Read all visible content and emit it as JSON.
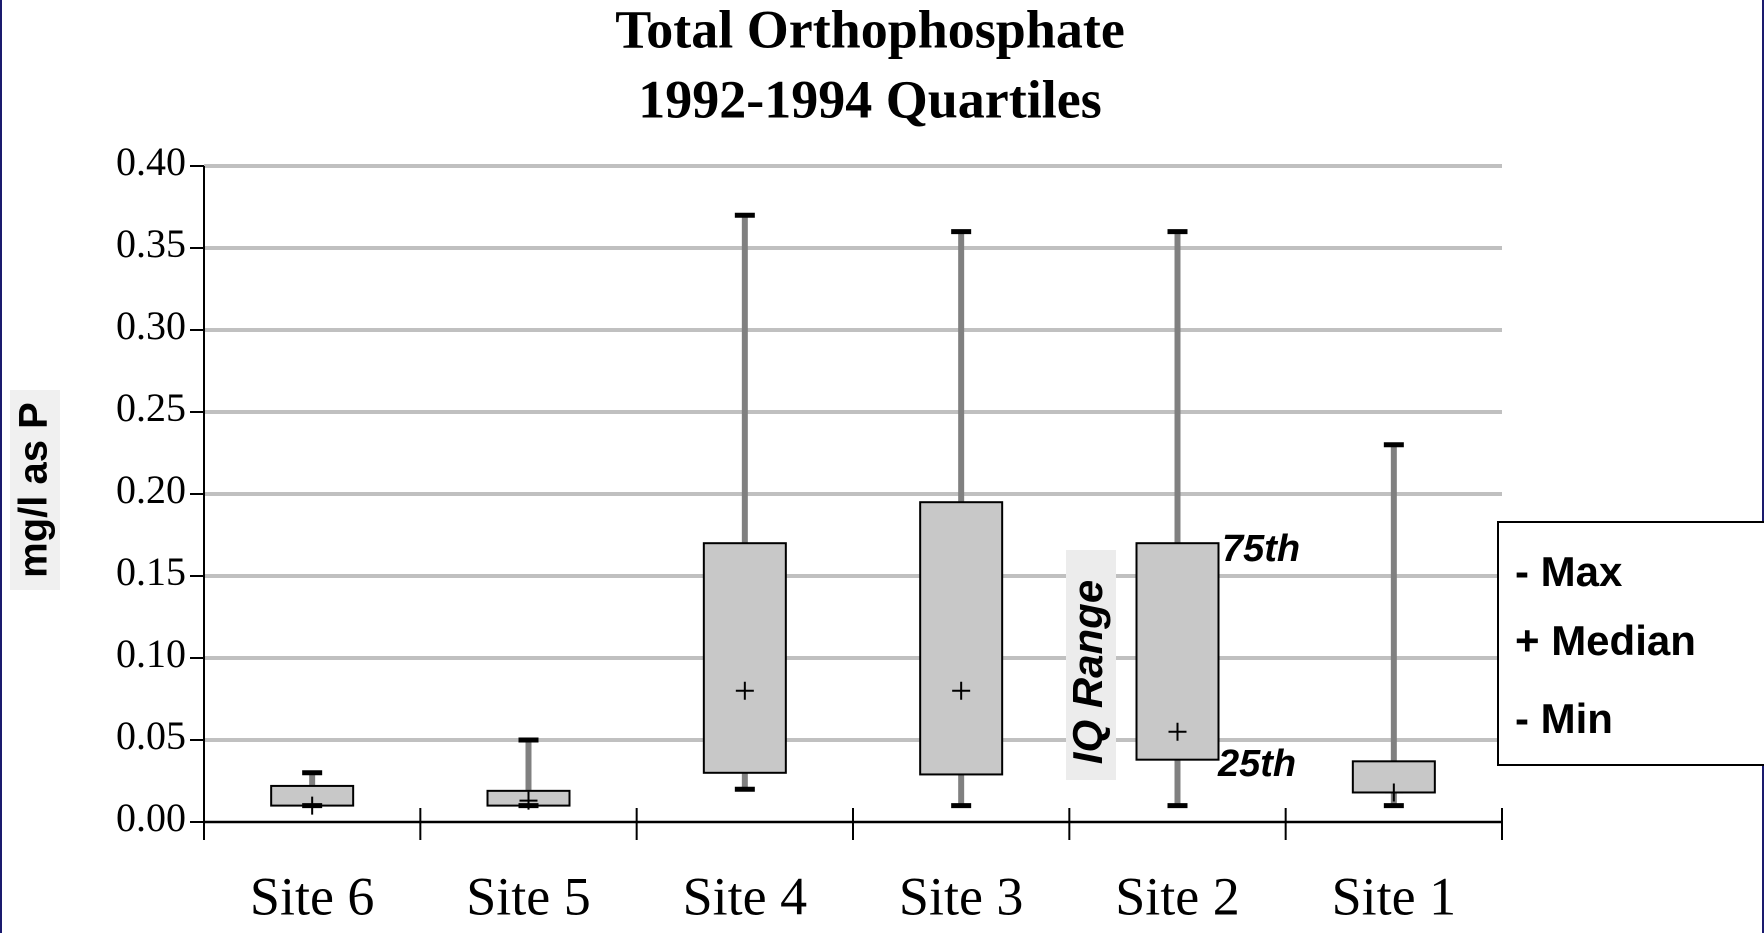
{
  "chart_data": {
    "type": "box",
    "title": [
      "Total Orthophosphate",
      "1992-1994 Quartiles"
    ],
    "ylabel": "mg/l as P",
    "categories": [
      "Site 6",
      "Site 5",
      "Site 4",
      "Site 3",
      "Site 2",
      "Site 1"
    ],
    "boxes": [
      {
        "min": 0.01,
        "q1": 0.01,
        "median": 0.01,
        "q3": 0.022,
        "max": 0.03
      },
      {
        "min": 0.01,
        "q1": 0.01,
        "median": 0.013,
        "q3": 0.019,
        "max": 0.05
      },
      {
        "min": 0.02,
        "q1": 0.03,
        "median": 0.08,
        "q3": 0.17,
        "max": 0.37
      },
      {
        "min": 0.01,
        "q1": 0.029,
        "median": 0.08,
        "q3": 0.195,
        "max": 0.36
      },
      {
        "min": 0.01,
        "q1": 0.038,
        "median": 0.055,
        "q3": 0.17,
        "max": 0.36
      },
      {
        "min": 0.01,
        "q1": 0.018,
        "median": 0.018,
        "q3": 0.037,
        "max": 0.23
      }
    ],
    "color": "#c8c8c8",
    "whisker_color": "#808080",
    "ylim": [
      0,
      0.4
    ],
    "yticks": [
      {
        "value": 0,
        "label": "0.00"
      },
      0.05,
      {
        "value": 0.1,
        "label": "0.10"
      },
      0.15,
      {
        "value": 0.2,
        "label": "0.20"
      },
      0.25,
      {
        "value": 0.3,
        "label": "0.30"
      },
      0.35,
      {
        "value": 0.4,
        "label": "0.40"
      }
    ],
    "grid": true,
    "annotations": [
      "75th",
      "25th",
      "IQ Range"
    ],
    "legend": [
      "- Max",
      "+ Median",
      "- Min"
    ]
  }
}
